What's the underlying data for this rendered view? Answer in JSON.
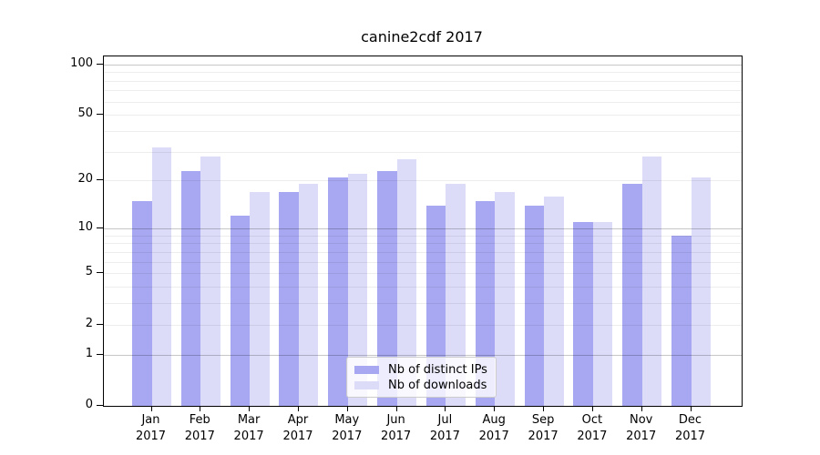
{
  "chart_data": {
    "type": "bar",
    "title": "canine2cdf 2017",
    "categories": [
      "Jan",
      "Feb",
      "Mar",
      "Apr",
      "May",
      "Jun",
      "Jul",
      "Aug",
      "Sep",
      "Oct",
      "Nov",
      "Dec"
    ],
    "x_tick_year": "2017",
    "series": [
      {
        "name": "Nb of distinct IPs",
        "color": "#a7a7f2",
        "values": [
          15,
          23,
          12,
          17,
          21,
          23,
          14,
          15,
          14,
          11,
          19,
          9
        ]
      },
      {
        "name": "Nb of downloads",
        "color": "#dcdcf9",
        "values": [
          32,
          28,
          17,
          19,
          22,
          27,
          19,
          17,
          16,
          11,
          28,
          21
        ]
      }
    ],
    "yscale": "log1p",
    "ylim": [
      0,
      111
    ],
    "yticks": [
      0,
      1,
      2,
      5,
      10,
      20,
      50,
      100
    ],
    "minor_gridlines": [
      2,
      3,
      4,
      5,
      6,
      7,
      8,
      9,
      20,
      30,
      40,
      50,
      60,
      70,
      80,
      90
    ],
    "major_gridlines": [
      1,
      10,
      100
    ],
    "grid": true,
    "legend_position": "lower center",
    "legend_entries": [
      "Nb of distinct IPs",
      "Nb of downloads"
    ]
  }
}
